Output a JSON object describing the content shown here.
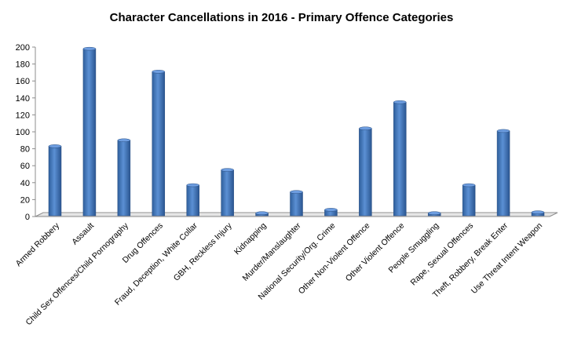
{
  "chart_data": {
    "type": "bar",
    "title": "Character Cancellations in 2016 - Primary Offence Categories",
    "xlabel": "",
    "ylabel": "",
    "ylim": [
      0,
      200
    ],
    "yticks": [
      0,
      20,
      40,
      60,
      80,
      100,
      120,
      140,
      160,
      180,
      200
    ],
    "grid": false,
    "legend": "none",
    "bar_color": "#4a7ebf",
    "categories": [
      "Armed Robbery",
      "Assault",
      "Child Sex Offences/Child Pornography",
      "Drug Offences",
      "Fraud, Deception, White Collar",
      "GBH, Reckless Injury",
      "Kidnapping",
      "Murder/Manslaughter",
      "National Security/Org. Crime",
      "Other Non-Violent Offence",
      "Other Violent Offence",
      "People Smuggling",
      "Rape, Sexual Offences",
      "Theft, Robbery, Break Enter",
      "Use Threat Intent Weapon"
    ],
    "values": [
      83,
      198,
      90,
      171,
      37,
      55,
      4,
      29,
      8,
      104,
      135,
      4,
      37,
      101,
      5
    ]
  }
}
